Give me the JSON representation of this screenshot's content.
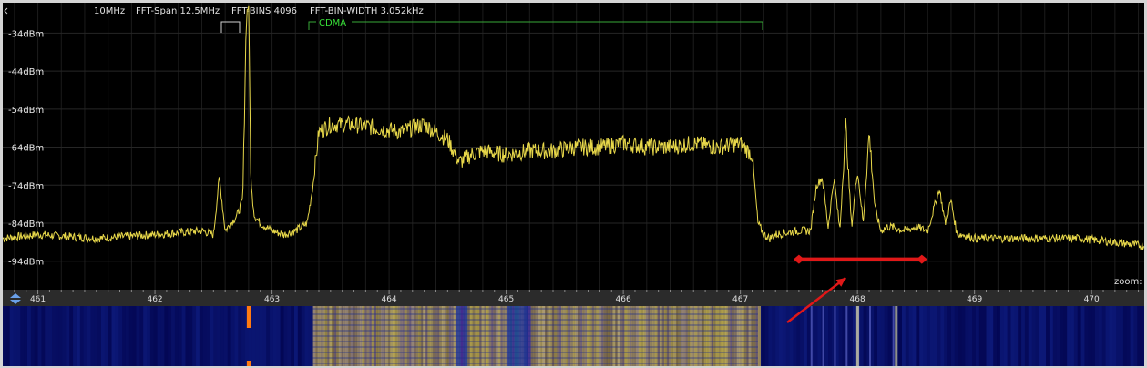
{
  "header": {
    "span_prefix": "10MHz",
    "fft_span": "FFT-Span 12.5MHz",
    "fft_bins": "FFT-BINS 4096",
    "fft_bin_width": "FFT-BIN-WIDTH 3.052kHz",
    "band_label": "CDMA"
  },
  "zoom_label": "zoom:",
  "colors": {
    "trace": "#e8d84a",
    "band_marker": "#38e038",
    "annotation": "#e01818",
    "waterfall_bg": "#0a0f4a"
  },
  "chart_data": {
    "type": "line",
    "xlabel": "",
    "ylabel": "",
    "y_ticks": [
      "-34dBm",
      "-44dBm",
      "-54dBm",
      "-64dBm",
      "-74dBm",
      "-84dBm",
      "-94dBm"
    ],
    "y_tick_values": [
      -34,
      -44,
      -54,
      -64,
      -74,
      -84,
      -94
    ],
    "x_ticks": [
      "461",
      "462",
      "463",
      "464",
      "465",
      "466",
      "467",
      "468",
      "469",
      "470"
    ],
    "x_tick_values": [
      461,
      462,
      463,
      464,
      465,
      466,
      467,
      468,
      469,
      470
    ],
    "xlim": [
      460.7,
      470.45
    ],
    "ylim": [
      -101.5,
      -26
    ],
    "grid": true,
    "series": [
      {
        "x": [
          460.7,
          461.0,
          461.5,
          462.0,
          462.4,
          462.5,
          462.55,
          462.6,
          462.65,
          462.7,
          462.75,
          462.78,
          462.8,
          462.82,
          462.85,
          462.9,
          463.0,
          463.1,
          463.2,
          463.3,
          463.35,
          463.4,
          463.5,
          463.7,
          463.9,
          464.1,
          464.3,
          464.5,
          464.6,
          464.7,
          464.8,
          465.0,
          465.2,
          465.4,
          465.6,
          465.8,
          466.0,
          466.2,
          466.4,
          466.6,
          466.8,
          467.0,
          467.1,
          467.15,
          467.2,
          467.25,
          467.3,
          467.5,
          467.6,
          467.65,
          467.7,
          467.75,
          467.8,
          467.85,
          467.9,
          467.95,
          468.0,
          468.05,
          468.1,
          468.15,
          468.2,
          468.25,
          468.3,
          468.4,
          468.5,
          468.6,
          468.7,
          468.75,
          468.8,
          468.85,
          468.9,
          469.0,
          469.3,
          469.6,
          469.9,
          470.2,
          470.45
        ],
        "values": [
          -88,
          -87,
          -88,
          -87,
          -86,
          -87,
          -72,
          -86,
          -84,
          -82,
          -78,
          -30,
          -26,
          -74,
          -82,
          -84,
          -86,
          -87,
          -86,
          -84,
          -74,
          -60,
          -58,
          -58,
          -59,
          -60,
          -58,
          -62,
          -68,
          -66,
          -65,
          -66,
          -65,
          -65,
          -64,
          -64,
          -63,
          -64,
          -64,
          -63,
          -64,
          -63,
          -66,
          -84,
          -87,
          -88,
          -87,
          -86,
          -86,
          -74,
          -72,
          -85,
          -72,
          -86,
          -58,
          -85,
          -70,
          -84,
          -60,
          -80,
          -86,
          -85,
          -85,
          -86,
          -85,
          -86,
          -75,
          -84,
          -78,
          -87,
          -87,
          -88,
          -88,
          -88,
          -88,
          -89,
          -90
        ]
      }
    ]
  },
  "annotations": {
    "range_low": 467.5,
    "range_high": 468.55,
    "arrow_from": [
      467.4,
      -100
    ],
    "arrow_to": [
      467.9,
      -88
    ]
  }
}
